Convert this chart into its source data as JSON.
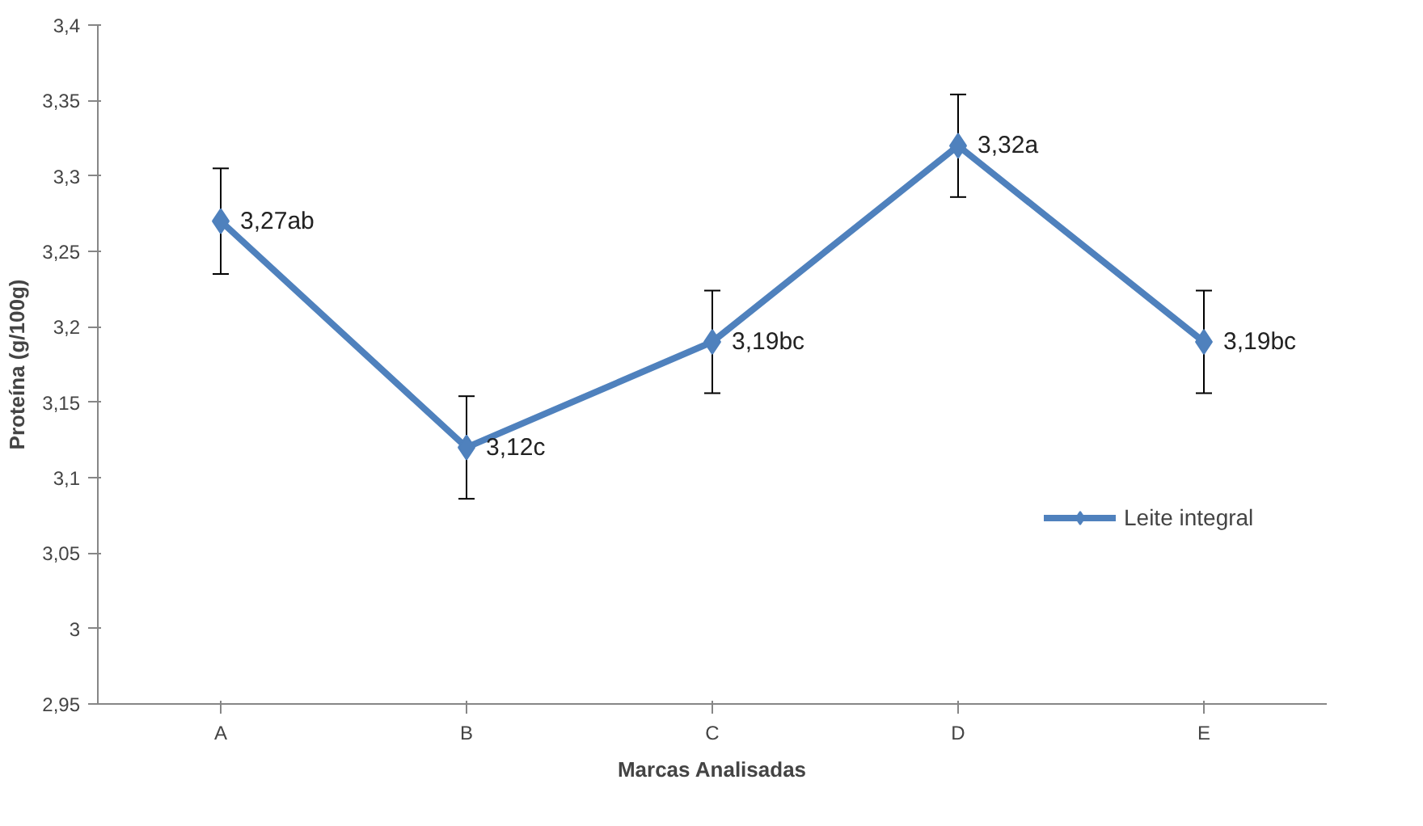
{
  "chart_data": {
    "type": "line",
    "xlabel": "Marcas Analisadas",
    "ylabel": "Proteína (g/100g)",
    "categories": [
      "A",
      "B",
      "C",
      "D",
      "E"
    ],
    "series": [
      {
        "name": "Leite integral",
        "color": "#4f81bd",
        "values": [
          3.27,
          3.12,
          3.19,
          3.32,
          3.19
        ],
        "errors": [
          0.035,
          0.034,
          0.034,
          0.034,
          0.034
        ],
        "value_labels": [
          "3,27ab",
          "3,12c",
          "3,19bc",
          "3,32a",
          "3,19bc"
        ]
      }
    ],
    "ylim": [
      2.95,
      3.4
    ],
    "yticks": [
      {
        "value": 2.95,
        "label": "2,95"
      },
      {
        "value": 3,
        "label": "3"
      },
      {
        "value": 3.05,
        "label": "3,05"
      },
      {
        "value": 3.1,
        "label": "3,1"
      },
      {
        "value": 3.15,
        "label": "3,15"
      },
      {
        "value": 3.2,
        "label": "3,2"
      },
      {
        "value": 3.25,
        "label": "3,25"
      },
      {
        "value": 3.3,
        "label": "3,3"
      },
      {
        "value": 3.35,
        "label": "3,35"
      },
      {
        "value": 3.4,
        "label": "3,4"
      }
    ],
    "grid": false,
    "legend": "right",
    "marker": "diamond",
    "line_style": "solid"
  }
}
